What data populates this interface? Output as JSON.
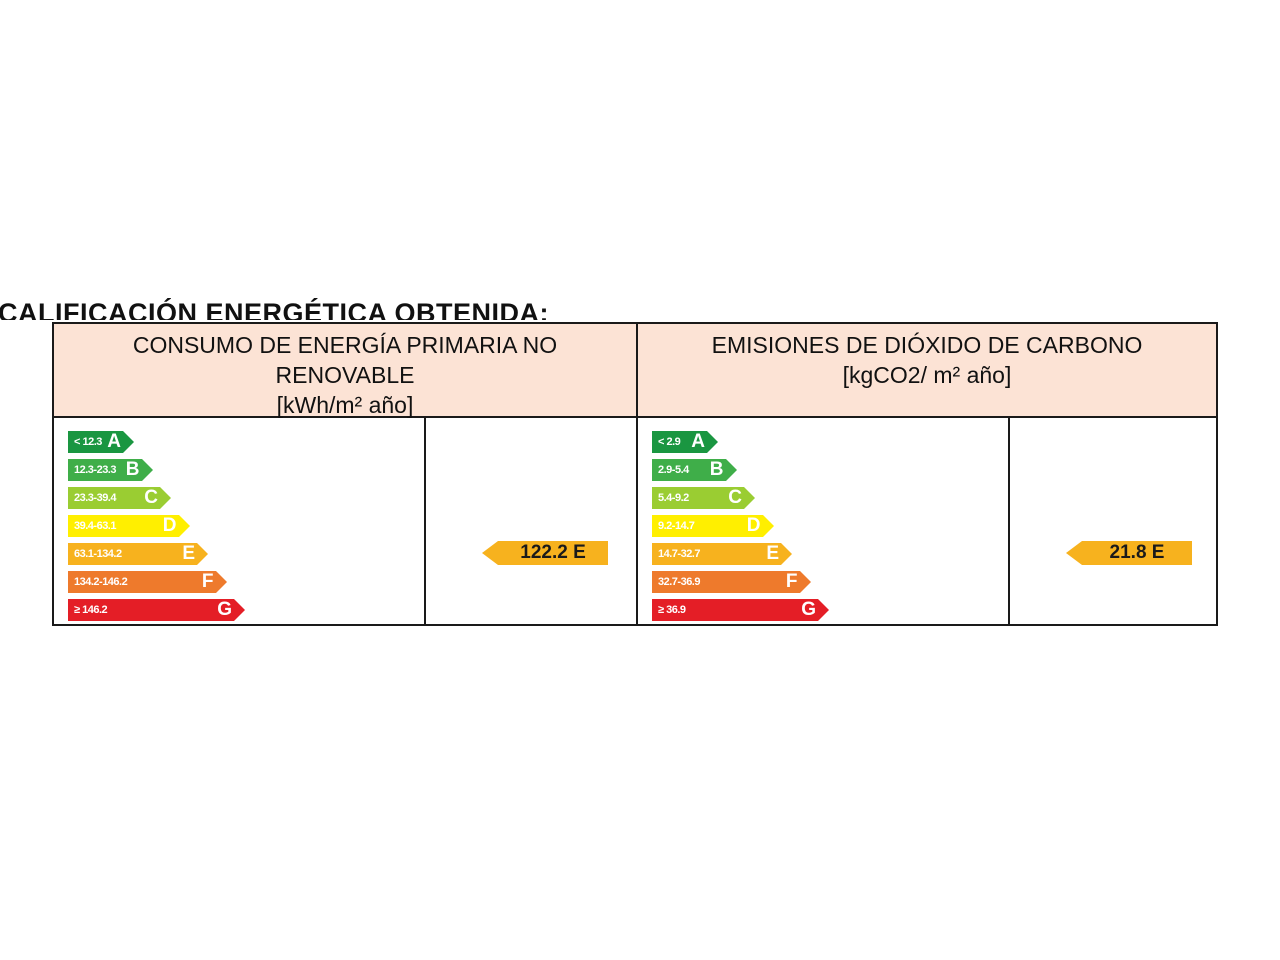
{
  "heading": "CALIFICACIÓN ENERGÉTICA OBTENIDA:",
  "panels": [
    {
      "title": "CONSUMO DE ENERGÍA PRIMARIA NO RENOVABLE",
      "unit": "[kWh/m² año]",
      "scale": [
        {
          "letter": "A",
          "range": "< 12.3",
          "color": "#1a9641"
        },
        {
          "letter": "B",
          "range": "12.3-23.3",
          "color": "#3fae49"
        },
        {
          "letter": "C",
          "range": "23.3-39.4",
          "color": "#9acd32"
        },
        {
          "letter": "D",
          "range": "39.4-63.1",
          "color": "#ffef00"
        },
        {
          "letter": "E",
          "range": "63.1-134.2",
          "color": "#f7b21e"
        },
        {
          "letter": "F",
          "range": "134.2-146.2",
          "color": "#ee7a2c"
        },
        {
          "letter": "G",
          "range": "≥ 146.2",
          "color": "#e41e26"
        }
      ],
      "rating": {
        "value": "122.2",
        "letter": "E",
        "color": "#f7b21e"
      },
      "rating_label": "122.2 E"
    },
    {
      "title": "EMISIONES DE DIÓXIDO DE CARBONO",
      "unit": "[kgCO2/ m² año]",
      "scale": [
        {
          "letter": "A",
          "range": "< 2.9",
          "color": "#1a9641"
        },
        {
          "letter": "B",
          "range": "2.9-5.4",
          "color": "#3fae49"
        },
        {
          "letter": "C",
          "range": "5.4-9.2",
          "color": "#9acd32"
        },
        {
          "letter": "D",
          "range": "9.2-14.7",
          "color": "#ffef00"
        },
        {
          "letter": "E",
          "range": "14.7-32.7",
          "color": "#f7b21e"
        },
        {
          "letter": "F",
          "range": "32.7-36.9",
          "color": "#ee7a2c"
        },
        {
          "letter": "G",
          "range": "≥ 36.9",
          "color": "#e41e26"
        }
      ],
      "rating": {
        "value": "21.8",
        "letter": "E",
        "color": "#f7b21e"
      },
      "rating_label": "21.8 E"
    }
  ]
}
